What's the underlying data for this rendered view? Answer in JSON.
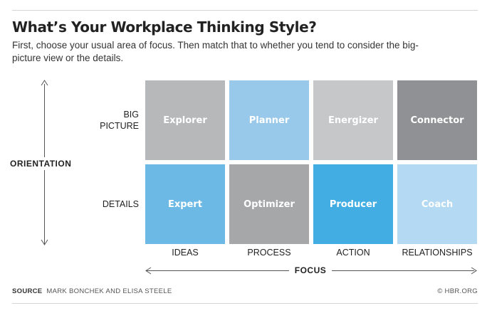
{
  "title": "What’s Your Workplace Thinking Style?",
  "subtitle": "First, choose your usual area of focus. Then match that to whether you tend to consider the big-picture view or the details.",
  "vertical_axis": {
    "title": "ORIENTATION",
    "rows": [
      {
        "line1": "BIG",
        "line2": "PICTURE"
      },
      {
        "line1": "DETAILS",
        "line2": ""
      }
    ]
  },
  "horizontal_axis": {
    "title": "FOCUS",
    "columns": [
      "IDEAS",
      "PROCESS",
      "ACTION",
      "RELATIONSHIPS"
    ]
  },
  "grid": [
    [
      {
        "label": "Explorer",
        "color": "#b7b8ba"
      },
      {
        "label": "Planner",
        "color": "#98c9ea"
      },
      {
        "label": "Energizer",
        "color": "#c6c7c9"
      },
      {
        "label": "Connector",
        "color": "#8f9194"
      }
    ],
    [
      {
        "label": "Expert",
        "color": "#6cb9e6"
      },
      {
        "label": "Optimizer",
        "color": "#a6a7a9"
      },
      {
        "label": "Producer",
        "color": "#42ade2"
      },
      {
        "label": "Coach",
        "color": "#b4d9f2"
      }
    ]
  ],
  "footer": {
    "source_label": "SOURCE",
    "source_text": "MARK BONCHEK AND ELISA STEELE",
    "credit": "© HBR.ORG"
  }
}
